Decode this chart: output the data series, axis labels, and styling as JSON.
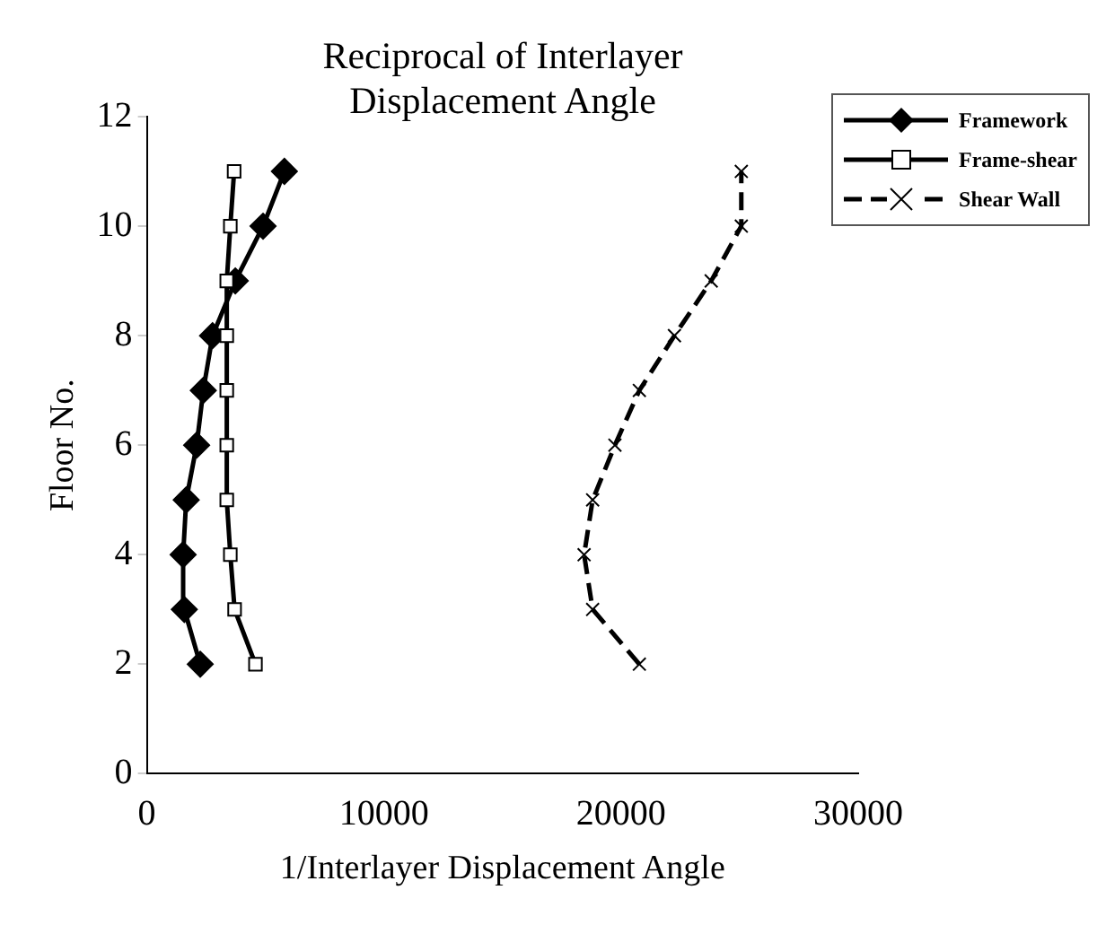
{
  "chart_data": {
    "type": "line",
    "title": "Reciprocal of Interlayer Displacement Angle",
    "xlabel": "1/Interlayer Displacement Angle",
    "ylabel": "Floor No.",
    "xlim": [
      0,
      30000
    ],
    "xticks": [
      0,
      10000,
      20000,
      30000
    ],
    "ylim": [
      0,
      12
    ],
    "yticks": [
      0,
      2,
      4,
      6,
      8,
      10,
      12
    ],
    "grid": false,
    "legend": "top right",
    "series": [
      {
        "name": "Framework",
        "color": "#000000",
        "marker": "diamond",
        "line_style": "solid",
        "x": [
          2250,
          1580,
          1530,
          1660,
          2100,
          2380,
          2770,
          3730,
          4900,
          5800
        ],
        "values": [
          2,
          3,
          4,
          5,
          6,
          7,
          8,
          9,
          10,
          11
        ]
      },
      {
        "name": "Frame-shear",
        "color": "#000000",
        "marker": "square",
        "line_style": "solid",
        "x": [
          4580,
          3700,
          3520,
          3370,
          3370,
          3370,
          3370,
          3370,
          3520,
          3680
        ],
        "values": [
          2,
          3,
          4,
          5,
          6,
          7,
          8,
          9,
          10,
          11
        ]
      },
      {
        "name": "Shear Wall",
        "color": "#000000",
        "marker": "cross",
        "line_style": "dashed",
        "x": [
          20770,
          18800,
          18440,
          18800,
          19740,
          20770,
          22250,
          23800,
          25070,
          25070
        ],
        "values": [
          2,
          3,
          4,
          5,
          6,
          7,
          8,
          9,
          10,
          11
        ]
      }
    ]
  }
}
